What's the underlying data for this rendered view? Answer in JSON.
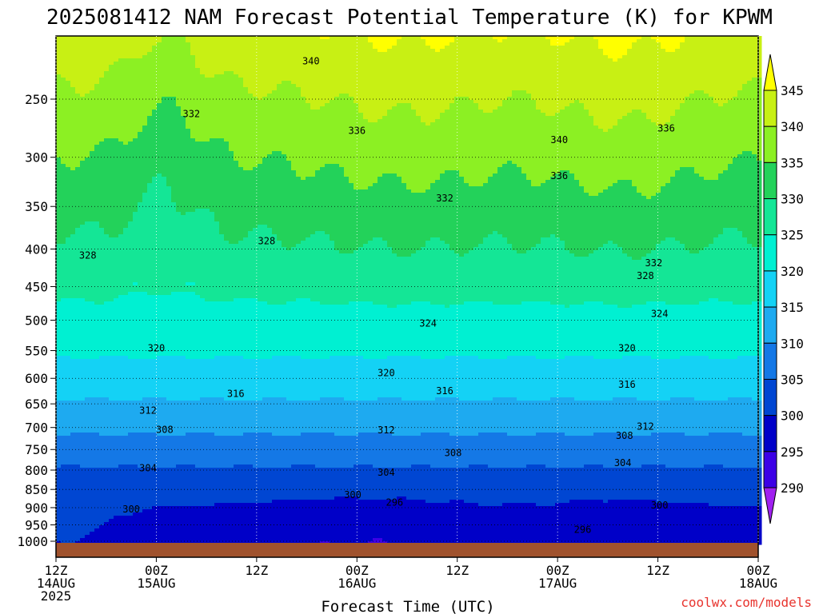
{
  "chart_data": {
    "type": "heatmap",
    "title": "2025081412 NAM Forecast Potential Temperature (K) for KPWM",
    "xlabel": "Forecast Time (UTC)",
    "ylabel": "",
    "credit": "coolwx.com/models",
    "x_ticks": [
      {
        "hours": 0,
        "line1": "12Z",
        "line2": "14AUG",
        "line3": "2025"
      },
      {
        "hours": 12,
        "line1": "00Z",
        "line2": "15AUG",
        "line3": ""
      },
      {
        "hours": 24,
        "line1": "12Z",
        "line2": "",
        "line3": ""
      },
      {
        "hours": 36,
        "line1": "00Z",
        "line2": "16AUG",
        "line3": ""
      },
      {
        "hours": 48,
        "line1": "12Z",
        "line2": "",
        "line3": ""
      },
      {
        "hours": 60,
        "line1": "00Z",
        "line2": "17AUG",
        "line3": ""
      },
      {
        "hours": 72,
        "line1": "12Z",
        "line2": "",
        "line3": ""
      },
      {
        "hours": 84,
        "line1": "00Z",
        "line2": "18AUG",
        "line3": ""
      }
    ],
    "xlim_hours": [
      0,
      84
    ],
    "y_ticks_hpa": [
      250,
      300,
      350,
      400,
      450,
      500,
      550,
      600,
      650,
      700,
      750,
      800,
      850,
      900,
      950,
      1000
    ],
    "ylim_hpa": [
      200,
      1030
    ],
    "y_scale": "log-pressure (inverted)",
    "grid": true,
    "colorbar": {
      "levels": [
        290,
        295,
        300,
        305,
        310,
        315,
        320,
        325,
        330,
        335,
        340,
        345
      ],
      "colors": [
        "#a020f0",
        "#3c00e6",
        "#0000c8",
        "#0046d2",
        "#1478e6",
        "#1eaaf0",
        "#14d2f5",
        "#00f0d2",
        "#14e696",
        "#23d25a",
        "#8cf023",
        "#c8f014",
        "#ffff00"
      ]
    },
    "contour_labels": [
      {
        "hours": 30.5,
        "hpa": 222,
        "text": "340"
      },
      {
        "hours": 16.2,
        "hpa": 262,
        "text": "332"
      },
      {
        "hours": 36.0,
        "hpa": 276,
        "text": "336"
      },
      {
        "hours": 60.2,
        "hpa": 284,
        "text": "340"
      },
      {
        "hours": 73.0,
        "hpa": 274,
        "text": "336"
      },
      {
        "hours": 60.2,
        "hpa": 318,
        "text": "336"
      },
      {
        "hours": 46.5,
        "hpa": 341,
        "text": "332"
      },
      {
        "hours": 3.8,
        "hpa": 408,
        "text": "328"
      },
      {
        "hours": 25.2,
        "hpa": 390,
        "text": "328"
      },
      {
        "hours": 71.5,
        "hpa": 418,
        "text": "332"
      },
      {
        "hours": 70.5,
        "hpa": 435,
        "text": "328"
      },
      {
        "hours": 44.5,
        "hpa": 505,
        "text": "324"
      },
      {
        "hours": 72.2,
        "hpa": 490,
        "text": "324"
      },
      {
        "hours": 12.0,
        "hpa": 546,
        "text": "320"
      },
      {
        "hours": 39.5,
        "hpa": 590,
        "text": "320"
      },
      {
        "hours": 68.3,
        "hpa": 546,
        "text": "320"
      },
      {
        "hours": 21.5,
        "hpa": 630,
        "text": "316"
      },
      {
        "hours": 46.5,
        "hpa": 624,
        "text": "316"
      },
      {
        "hours": 68.3,
        "hpa": 612,
        "text": "316"
      },
      {
        "hours": 11.0,
        "hpa": 664,
        "text": "312"
      },
      {
        "hours": 39.5,
        "hpa": 706,
        "text": "312"
      },
      {
        "hours": 70.5,
        "hpa": 698,
        "text": "312"
      },
      {
        "hours": 13.0,
        "hpa": 705,
        "text": "308"
      },
      {
        "hours": 47.5,
        "hpa": 758,
        "text": "308"
      },
      {
        "hours": 68.0,
        "hpa": 718,
        "text": "308"
      },
      {
        "hours": 11.0,
        "hpa": 795,
        "text": "304"
      },
      {
        "hours": 39.5,
        "hpa": 806,
        "text": "304"
      },
      {
        "hours": 67.8,
        "hpa": 782,
        "text": "304"
      },
      {
        "hours": 35.5,
        "hpa": 865,
        "text": "300"
      },
      {
        "hours": 40.5,
        "hpa": 885,
        "text": "296"
      },
      {
        "hours": 9.0,
        "hpa": 905,
        "text": "300"
      },
      {
        "hours": 72.2,
        "hpa": 893,
        "text": "300"
      },
      {
        "hours": 63.0,
        "hpa": 964,
        "text": "296"
      }
    ]
  }
}
